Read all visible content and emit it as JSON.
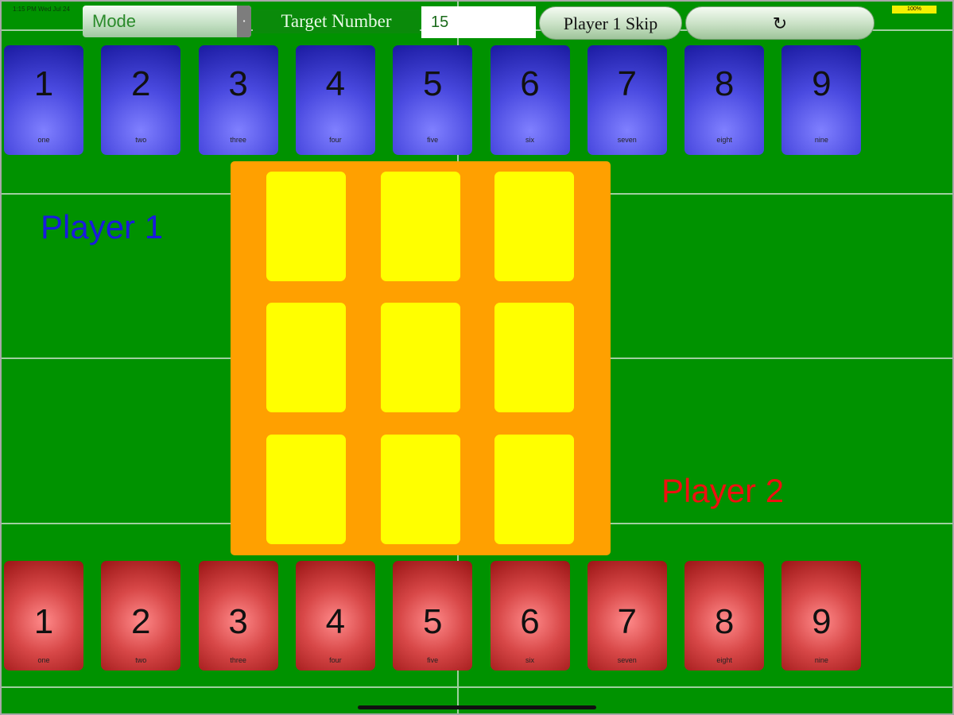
{
  "status_bar": {
    "time": "1:15 PM  Wed Jul 24",
    "battery": "100%",
    "battery_color": "#f4f000"
  },
  "toolbar": {
    "mode_label": "Mode",
    "target_label": "Target Number",
    "target_value": "15",
    "skip_label": "Player 1 Skip",
    "reset_label": "↻"
  },
  "players": {
    "p1": {
      "label": "Player 1",
      "color": "#1a1adf"
    },
    "p2": {
      "label": "Player 2",
      "color": "#ef1010"
    }
  },
  "top_cards": [
    {
      "n": "1",
      "w": "one"
    },
    {
      "n": "2",
      "w": "two"
    },
    {
      "n": "3",
      "w": "three"
    },
    {
      "n": "4",
      "w": "four"
    },
    {
      "n": "5",
      "w": "five"
    },
    {
      "n": "6",
      "w": "six"
    },
    {
      "n": "7",
      "w": "seven"
    },
    {
      "n": "8",
      "w": "eight"
    },
    {
      "n": "9",
      "w": "nine"
    }
  ],
  "bottom_cards": [
    {
      "n": "1",
      "w": "one"
    },
    {
      "n": "2",
      "w": "two"
    },
    {
      "n": "3",
      "w": "three"
    },
    {
      "n": "4",
      "w": "four"
    },
    {
      "n": "5",
      "w": "five"
    },
    {
      "n": "6",
      "w": "six"
    },
    {
      "n": "7",
      "w": "seven"
    },
    {
      "n": "8",
      "w": "eight"
    },
    {
      "n": "9",
      "w": "nine"
    }
  ],
  "board": {
    "rows": 3,
    "cols": 3,
    "board_color": "#ffa000",
    "cell_color": "#ffff00"
  },
  "colors": {
    "table": "#009200"
  }
}
